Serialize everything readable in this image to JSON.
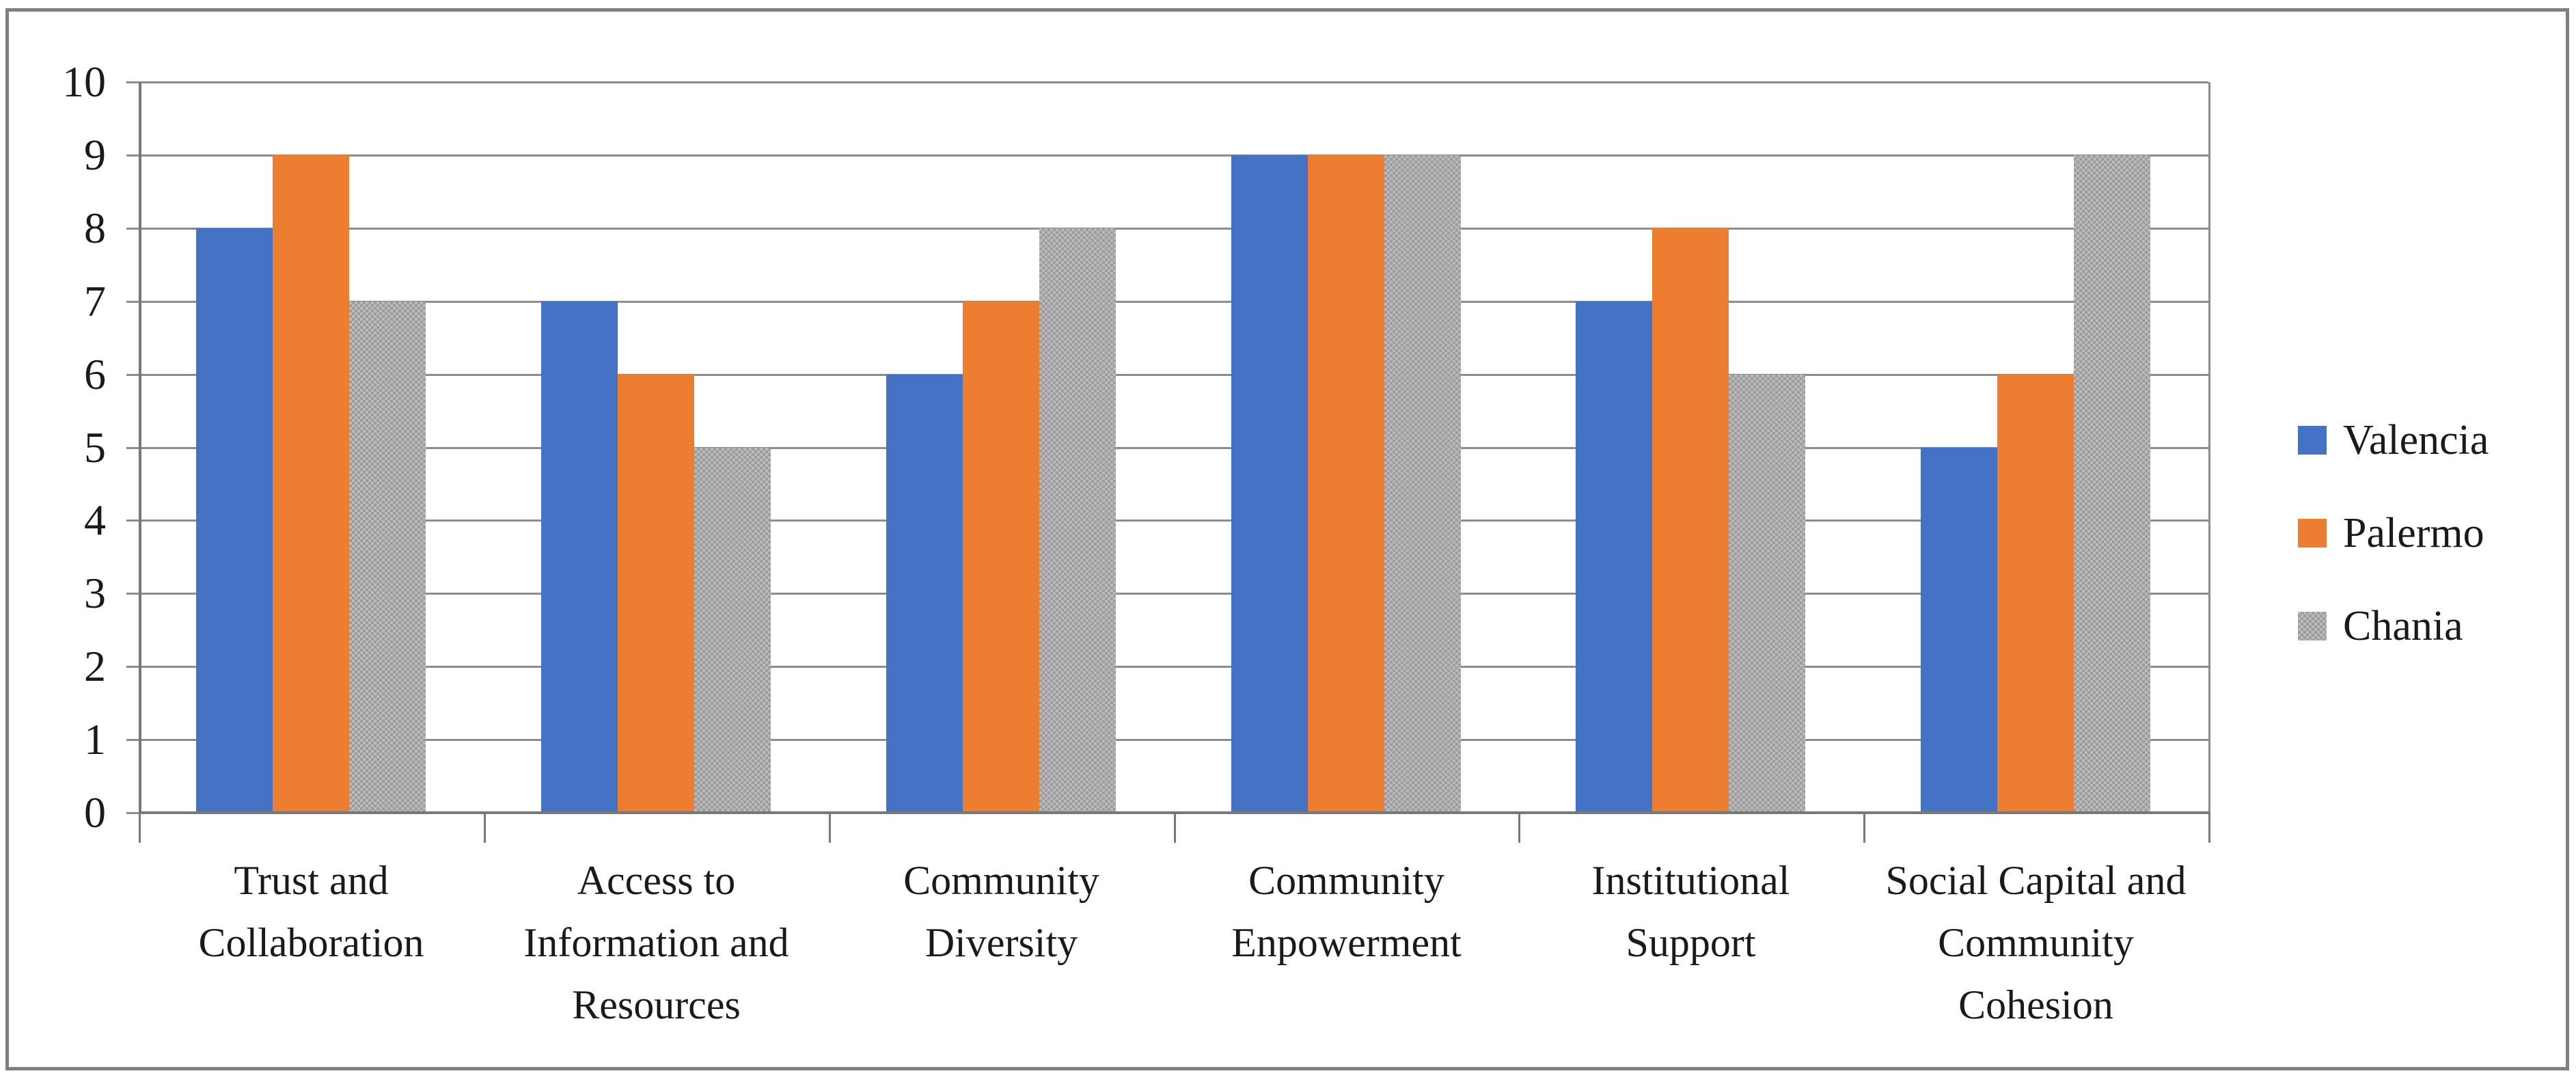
{
  "figure": {
    "background": "#ffffff",
    "frame_border_color": "#7f7f7f",
    "gridline_color": "#8c8c8c",
    "axis_color": "#787878",
    "text_color": "#1a1a1a"
  },
  "chart_data": {
    "type": "bar",
    "title": "",
    "xlabel": "",
    "ylabel": "",
    "categories": [
      "Trust and Collaboration",
      "Access to Information and Resources",
      "Community Diversity",
      "Community Enpowerment",
      "Institutional Support",
      "Social Capital and Community Cohesion"
    ],
    "series": [
      {
        "name": "Valencia",
        "color": "#4472C4",
        "pattern": "solid",
        "values": [
          8,
          7,
          6,
          9,
          7,
          5
        ]
      },
      {
        "name": "Palermo",
        "color": "#ED7D31",
        "pattern": "solid",
        "values": [
          9,
          6,
          7,
          9,
          8,
          6
        ]
      },
      {
        "name": "Chania",
        "color": "#A6A6A6",
        "pattern": "dotted-checker",
        "values": [
          7,
          5,
          8,
          9,
          6,
          9
        ]
      }
    ],
    "ylim": [
      0,
      10
    ],
    "ytick_step": 1,
    "yticks": [
      "0",
      "1",
      "2",
      "3",
      "4",
      "5",
      "6",
      "7",
      "8",
      "9",
      "10"
    ],
    "grid": true,
    "legend_position": "right",
    "legend_items": [
      "Valencia",
      "Palermo",
      "Chania"
    ]
  }
}
